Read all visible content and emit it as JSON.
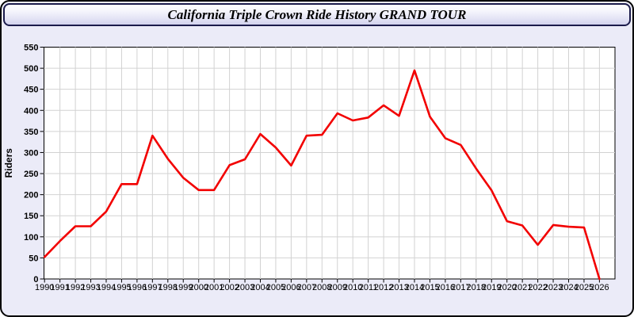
{
  "window": {
    "title": "California Triple Crown Ride History GRAND TOUR"
  },
  "colors": {
    "background": "#ebebf8",
    "plot_background": "#ffffff",
    "grid": "#d2d2d2",
    "axis": "#000000",
    "line": "#f20000",
    "title_border": "#1b1b4b"
  },
  "chart_data": {
    "type": "line",
    "title": "California Triple Crown Ride History GRAND TOUR",
    "xlabel": "",
    "ylabel": "Riders",
    "x": [
      1990,
      1991,
      1992,
      1993,
      1994,
      1995,
      1996,
      1997,
      1998,
      1999,
      2000,
      2001,
      2002,
      2003,
      2004,
      2005,
      2006,
      2007,
      2008,
      2009,
      2010,
      2011,
      2012,
      2013,
      2014,
      2015,
      2016,
      2017,
      2018,
      2019,
      2020,
      2021,
      2022,
      2023,
      2024,
      2025,
      2026
    ],
    "series": [
      {
        "name": "Riders",
        "color": "#f20000",
        "values": [
          52,
          90,
          125,
          125,
          160,
          225,
          225,
          340,
          285,
          240,
          211,
          211,
          270,
          284,
          344,
          312,
          269,
          340,
          342,
          393,
          376,
          383,
          412,
          387,
          495,
          385,
          334,
          318,
          262,
          210,
          137,
          127,
          81,
          128,
          124,
          122,
          0
        ]
      }
    ],
    "ylim": [
      0,
      550
    ],
    "ytick_step": 50,
    "grid": true,
    "legend": "none"
  }
}
